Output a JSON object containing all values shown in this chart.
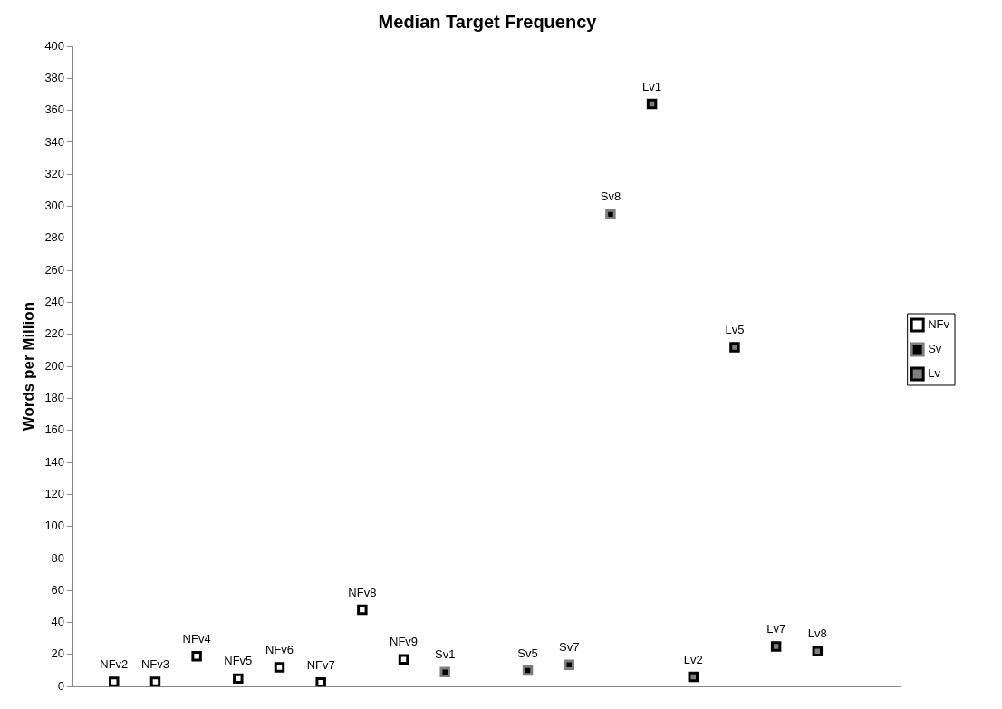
{
  "chart_data": {
    "type": "scatter",
    "title": "Median Target Frequency",
    "ylabel": "Words per Million",
    "categories": [
      null,
      null,
      null,
      null,
      null,
      null,
      null,
      null,
      null,
      null,
      null,
      null,
      null,
      null,
      null,
      null,
      null,
      null,
      null,
      null,
      null
    ],
    "ylim": [
      0,
      400
    ],
    "yticks": [
      0,
      20,
      40,
      60,
      80,
      100,
      120,
      140,
      160,
      180,
      200,
      220,
      240,
      260,
      280,
      300,
      320,
      340,
      360,
      380,
      400
    ],
    "tick_labels": "y",
    "grid": false,
    "legend": "right",
    "marker": "square",
    "series": [
      {
        "name": "NFv",
        "color": "#000000",
        "values": [
          null,
          3,
          3,
          19,
          5,
          12,
          2.5,
          48,
          17,
          null,
          null,
          null,
          null,
          null,
          null,
          null,
          null,
          null,
          null,
          null,
          null
        ],
        "value_labels": [
          null,
          "NFv2",
          "NFv3",
          "NFv4",
          "NFv5",
          "NFv6",
          "NFv7",
          "NFv8",
          "NFv9",
          null,
          null,
          null,
          null,
          null,
          null,
          null,
          null,
          null,
          null,
          null,
          null
        ]
      },
      {
        "name": "Sv",
        "color": "#7f7f7f",
        "values": [
          null,
          null,
          null,
          null,
          null,
          null,
          null,
          null,
          null,
          9,
          null,
          10,
          13.5,
          295,
          null,
          null,
          null,
          null,
          null,
          null,
          null
        ],
        "value_labels": [
          null,
          null,
          null,
          null,
          null,
          null,
          null,
          null,
          null,
          "Sv1",
          null,
          "Sv5",
          "Sv7",
          "Sv8",
          null,
          null,
          null,
          null,
          null,
          null,
          null
        ]
      },
      {
        "name": "Lv",
        "color": "#000000",
        "values": [
          null,
          null,
          null,
          null,
          null,
          null,
          null,
          null,
          null,
          null,
          null,
          null,
          null,
          null,
          364,
          6,
          212,
          25,
          22,
          null,
          null
        ],
        "value_labels": [
          null,
          null,
          null,
          null,
          null,
          null,
          null,
          null,
          null,
          null,
          null,
          null,
          null,
          null,
          "Lv1",
          "Lv2",
          "Lv5",
          "Lv7",
          "Lv8",
          null,
          null
        ]
      }
    ]
  }
}
